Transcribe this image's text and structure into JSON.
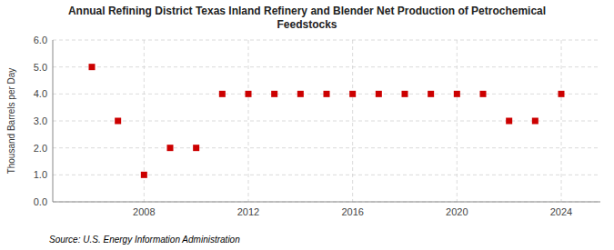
{
  "chart_data": {
    "type": "scatter",
    "title": "Annual Refining District Texas Inland Refinery and Blender Net Production of Petrochemical\nFeedstocks",
    "y_label": "Thousand Barrels per Day",
    "annotations": [
      "Source: U.S. Energy Information Administration"
    ],
    "x": [
      2006,
      2007,
      2008,
      2009,
      2010,
      2011,
      2012,
      2013,
      2014,
      2015,
      2016,
      2017,
      2018,
      2019,
      2020,
      2021,
      2022,
      2023,
      2024
    ],
    "values": [
      5.0,
      3.0,
      1.0,
      2.0,
      2.0,
      4.0,
      4.0,
      4.0,
      4.0,
      4.0,
      4.0,
      4.0,
      4.0,
      4.0,
      4.0,
      4.0,
      3.0,
      3.0,
      4.0
    ],
    "color": "#cc0000",
    "marker": "square",
    "xlim": [
      2004.5,
      2025.5
    ],
    "xticks": [
      2008,
      2012,
      2016,
      2020,
      2024
    ],
    "ylim": [
      0.0,
      6.0
    ],
    "yticks": [
      {
        "value": 0.0,
        "label": "0.0"
      },
      {
        "value": 1.0,
        "label": "1.0"
      },
      {
        "value": 2.0,
        "label": "2.0"
      },
      {
        "value": 3.0,
        "label": "3.0"
      },
      {
        "value": 4.0,
        "label": "4.0"
      },
      {
        "value": 5.0,
        "label": "5.0"
      },
      {
        "value": 6.0,
        "label": "6.0"
      }
    ],
    "grid": true
  }
}
